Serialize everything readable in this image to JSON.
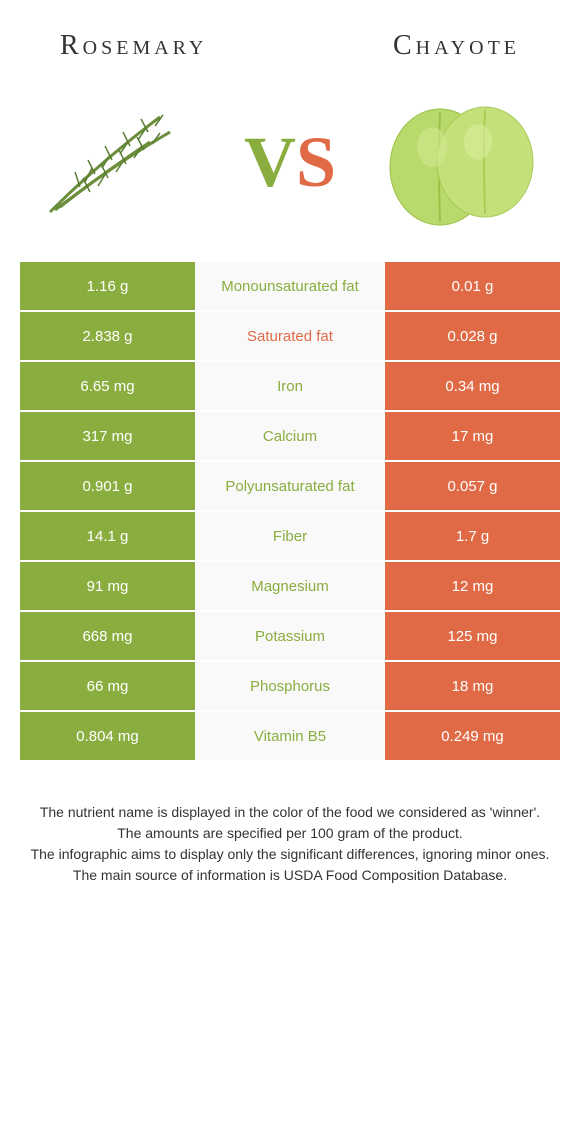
{
  "header": {
    "left": "Rosemary",
    "right": "Chayote"
  },
  "vs": {
    "v": "V",
    "s": "S"
  },
  "colors": {
    "green": "#8aad3f",
    "orange": "#e06a45",
    "mid_bg": "#f9f9f9"
  },
  "rows": [
    {
      "left": "1.16 g",
      "label": "Monounsaturated fat",
      "right": "0.01 g",
      "winner": "green"
    },
    {
      "left": "2.838 g",
      "label": "Saturated fat",
      "right": "0.028 g",
      "winner": "orange"
    },
    {
      "left": "6.65 mg",
      "label": "Iron",
      "right": "0.34 mg",
      "winner": "green"
    },
    {
      "left": "317 mg",
      "label": "Calcium",
      "right": "17 mg",
      "winner": "green"
    },
    {
      "left": "0.901 g",
      "label": "Polyunsaturated fat",
      "right": "0.057 g",
      "winner": "green"
    },
    {
      "left": "14.1 g",
      "label": "Fiber",
      "right": "1.7 g",
      "winner": "green"
    },
    {
      "left": "91 mg",
      "label": "Magnesium",
      "right": "12 mg",
      "winner": "green"
    },
    {
      "left": "668 mg",
      "label": "Potassium",
      "right": "125 mg",
      "winner": "green"
    },
    {
      "left": "66 mg",
      "label": "Phosphorus",
      "right": "18 mg",
      "winner": "green"
    },
    {
      "left": "0.804 mg",
      "label": "Vitamin B5",
      "right": "0.249 mg",
      "winner": "green"
    }
  ],
  "footer": {
    "line1": "The nutrient name is displayed in the color of the food we considered as 'winner'.",
    "line2": "The amounts are specified per 100 gram of the product.",
    "line3": "The infographic aims to display only the significant differences, ignoring minor ones.",
    "line4": "The main source of information is USDA Food Composition Database."
  }
}
